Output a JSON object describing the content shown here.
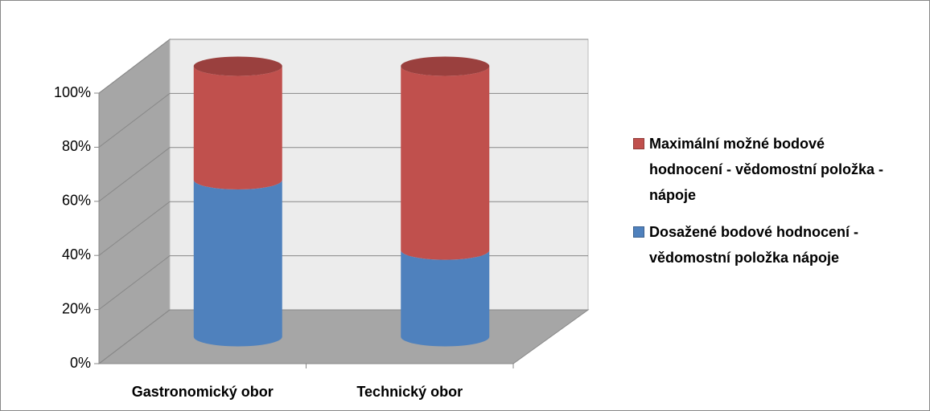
{
  "chart_data": {
    "type": "bar3d_cylinder_stacked",
    "categories": [
      "Gastronomický obor",
      "Technický obor"
    ],
    "series": [
      {
        "name": "Dosažené bodové hodnocení - vědomostní položka nápoje",
        "color": "#4f81bd",
        "values": [
          58,
          32
        ]
      },
      {
        "name": "Maximální možné bodové hodnocení - vědomostní položka - nápoje",
        "color": "#c0504d",
        "values": [
          42,
          68
        ]
      }
    ],
    "ylim": [
      0,
      100
    ],
    "yticks": [
      {
        "value": 0,
        "label": "0%"
      },
      {
        "value": 20,
        "label": "20%"
      },
      {
        "value": 40,
        "label": "40%"
      },
      {
        "value": 60,
        "label": "60%"
      },
      {
        "value": 80,
        "label": "80%"
      },
      {
        "value": 100,
        "label": "100%"
      }
    ],
    "grid": true,
    "legend": "right"
  }
}
